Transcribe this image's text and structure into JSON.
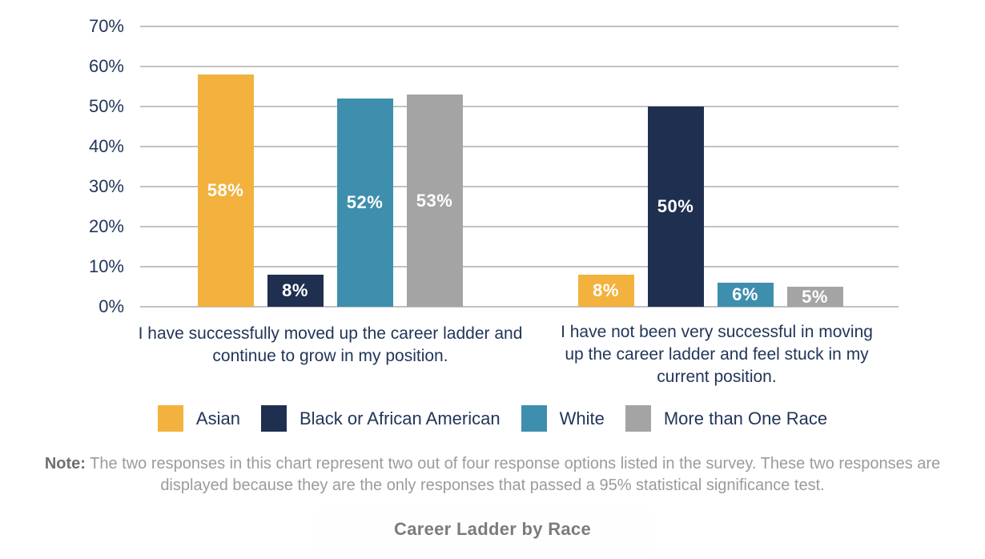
{
  "chart_data": {
    "type": "bar",
    "title": "Career Ladder by Race",
    "categories": [
      "I have successfully moved up the career ladder and continue to grow in my position.",
      "I have not been very successful in moving up the career ladder and feel stuck in my current position."
    ],
    "series": [
      {
        "name": "Asian",
        "color": "#F2B23D",
        "values": [
          58,
          8
        ]
      },
      {
        "name": "Black or African American",
        "color": "#1F2F50",
        "values": [
          8,
          50
        ]
      },
      {
        "name": "White",
        "color": "#3E8FAD",
        "values": [
          52,
          6
        ]
      },
      {
        "name": "More than One Race",
        "color": "#A5A4A4",
        "values": [
          53,
          5
        ]
      }
    ],
    "value_labels": [
      [
        "58%",
        "8%",
        "52%",
        "53%"
      ],
      [
        "8%",
        "50%",
        "6%",
        "5%"
      ]
    ],
    "y_axis": {
      "ticks": [
        "0%",
        "10%",
        "20%",
        "30%",
        "40%",
        "50%",
        "60%",
        "70%"
      ],
      "min": 0,
      "max": 70
    },
    "grid": true,
    "legend_position": "bottom"
  },
  "note": {
    "label": "Note:",
    "text": "The two responses in this chart represent two out of four response options listed in the survey. These two responses are displayed because they are the only responses that passed a 95% statistical significance test."
  },
  "colors": {
    "axis_text": "#223659",
    "gridline": "#C2C2C2",
    "value_label": "#FFFFFF",
    "note_text": "#9B9B9B",
    "title_text": "#7C7C7C",
    "background": "#FFFFFF"
  }
}
